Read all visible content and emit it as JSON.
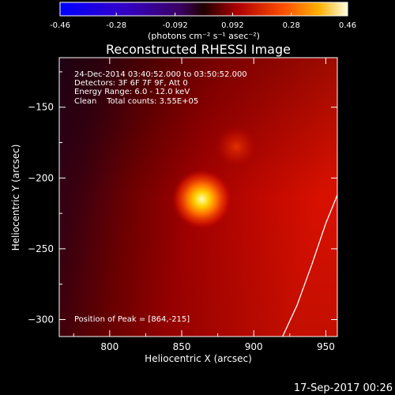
{
  "colorbar": {
    "ticks": [
      "-0.46",
      "-0.28",
      "-0.092",
      "0.092",
      "0.28",
      "0.46"
    ],
    "tick_values": [
      -0.46,
      -0.28,
      -0.092,
      0.092,
      0.28,
      0.46
    ],
    "range": [
      -0.46,
      0.46
    ],
    "colormap": "RHESSI red-temperature with blue/purple negatives",
    "unit_label": "(photons cm⁻² s⁻¹ asec⁻²)"
  },
  "chart_data": {
    "type": "heatmap",
    "title": "Reconstructed RHESSI Image",
    "xlabel": "Heliocentric X (arcsec)",
    "ylabel": "Heliocentric Y (arcsec)",
    "xlim": [
      765,
      958
    ],
    "ylim": [
      -312,
      -115
    ],
    "x_ticks": [
      800,
      850,
      900,
      950
    ],
    "x_tick_labels": [
      "800",
      "850",
      "900",
      "950"
    ],
    "y_ticks": [
      -150,
      -200,
      -250,
      -300
    ],
    "y_tick_labels": [
      "−150",
      "−200",
      "−250",
      "−300"
    ],
    "peak": {
      "x": 864,
      "y": -215
    },
    "secondary_source": {
      "x": 888,
      "y": -178
    },
    "annotations": [
      "24-Dec-2014 03:40:52.000 to 03:50:52.000",
      "Detectors: 3F 6F 7F 9F, Att 0",
      "Energy Range: 6.0 - 12.0 keV",
      "Clean    Total counts: 3.55E+05"
    ],
    "peak_label": "Position of Peak = [864,-215]",
    "limb_curve": [
      [
        958,
        -212
      ],
      [
        950,
        -232
      ],
      [
        940,
        -262
      ],
      [
        930,
        -290
      ],
      [
        920,
        -312
      ]
    ]
  },
  "footer": {
    "date": "17-Sep-2017 00:26"
  }
}
